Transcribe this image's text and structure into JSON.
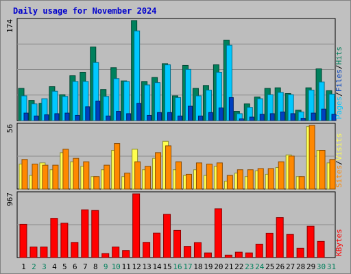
{
  "title": "Daily usage for November 2024",
  "colors": {
    "background": "#c0c0c0",
    "plot_background": "#bdbdbd",
    "gridline": "#8a8a8a",
    "title": "#0000cc",
    "hits": "#00805c",
    "files": "#00c8ff",
    "pages": "#0040c0",
    "visits": "#ffff50",
    "sites": "#ff8800",
    "kbytes": "#ff0000",
    "weekday_label": "#000000",
    "weekend_label": "#00805c"
  },
  "days": [
    "1",
    "2",
    "3",
    "4",
    "5",
    "6",
    "7",
    "8",
    "9",
    "10",
    "11",
    "12",
    "13",
    "14",
    "15",
    "16",
    "17",
    "18",
    "19",
    "20",
    "21",
    "22",
    "23",
    "24",
    "25",
    "26",
    "27",
    "28",
    "29",
    "30",
    "31"
  ],
  "weekend_days": [
    2,
    3,
    9,
    10,
    16,
    17,
    23,
    24,
    30,
    31
  ],
  "chart_data": [
    {
      "type": "bar",
      "title": "Daily usage for November 2024",
      "max_label": "174",
      "ylim": [
        0,
        174
      ],
      "legend": [
        {
          "text": "Pages",
          "color": "#00c8ff"
        },
        {
          "text": "Files",
          "color": "#0040c0"
        },
        {
          "text": "Hits",
          "color": "#00805c"
        }
      ],
      "series": [
        {
          "name": "Hits",
          "color": "#00805c",
          "values": [
            56,
            35,
            30,
            59,
            45,
            78,
            84,
            128,
            54,
            92,
            69,
            174,
            68,
            75,
            99,
            43,
            96,
            56,
            61,
            97,
            140,
            16,
            29,
            41,
            56,
            57,
            47,
            18,
            57,
            90,
            52
          ]
        },
        {
          "name": "Files",
          "color": "#00c8ff",
          "values": [
            43,
            29,
            38,
            51,
            42,
            68,
            68,
            101,
            42,
            73,
            68,
            156,
            62,
            66,
            97,
            40,
            89,
            43,
            53,
            84,
            131,
            12,
            23,
            38,
            45,
            49,
            45,
            15,
            53,
            67,
            46
          ]
        },
        {
          "name": "Pages",
          "color": "#0040c0",
          "values": [
            13,
            8,
            10,
            12,
            13,
            9,
            24,
            34,
            8,
            16,
            12,
            30,
            9,
            14,
            14,
            8,
            25,
            8,
            14,
            22,
            40,
            3,
            6,
            11,
            12,
            15,
            12,
            4,
            13,
            20,
            11
          ]
        }
      ]
    },
    {
      "type": "bar",
      "max_label": "56",
      "ylim": [
        0,
        56
      ],
      "legend": [
        {
          "text": "Sites",
          "color": "#ff8800"
        },
        {
          "text": "Visits",
          "color": "#ffff50"
        }
      ],
      "series": [
        {
          "name": "Visits",
          "color": "#ffff50",
          "values": [
            22,
            12,
            23,
            17,
            32,
            24,
            20,
            11,
            17,
            34,
            11,
            35,
            17,
            27,
            42,
            17,
            12,
            17,
            12,
            20,
            7,
            14,
            11,
            16,
            13,
            19,
            30,
            11,
            55,
            34,
            23
          ]
        },
        {
          "name": "Sites",
          "color": "#ff8800",
          "values": [
            26,
            22,
            21,
            21,
            35,
            27,
            24,
            11,
            21,
            40,
            14,
            24,
            20,
            32,
            38,
            24,
            13,
            23,
            22,
            23,
            12,
            17,
            17,
            18,
            18,
            24,
            29,
            11,
            56,
            34,
            26
          ]
        }
      ]
    },
    {
      "type": "bar",
      "max_label": "967",
      "ylim": [
        0,
        967
      ],
      "legend": [
        {
          "text": "KBytes",
          "color": "#ff0000"
        }
      ],
      "series": [
        {
          "name": "KBytes",
          "color": "#ff0000",
          "values": [
            505,
            161,
            161,
            596,
            522,
            230,
            725,
            715,
            61,
            161,
            107,
            967,
            231,
            372,
            657,
            412,
            170,
            228,
            71,
            740,
            38,
            82,
            71,
            204,
            370,
            607,
            351,
            142,
            476,
            246,
            0
          ]
        }
      ]
    }
  ]
}
